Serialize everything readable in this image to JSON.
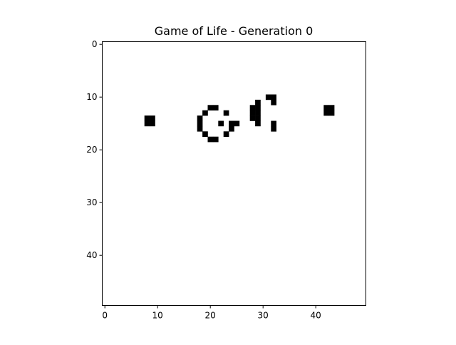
{
  "title": "Game of Life - Generation 0",
  "chart_data": {
    "type": "heatmap",
    "title": "Game of Life - Generation 0",
    "grid_size": [
      50,
      50
    ],
    "xlim": [
      -0.5,
      49.5
    ],
    "ylim": [
      49.5,
      -0.5
    ],
    "xticks": [
      0,
      10,
      20,
      30,
      40
    ],
    "yticks": [
      0,
      10,
      20,
      30,
      40
    ],
    "colors": {
      "alive": "#000000",
      "dead": "#ffffff"
    },
    "live_cells": [
      [
        31,
        10
      ],
      [
        32,
        10
      ],
      [
        29,
        11
      ],
      [
        32,
        11
      ],
      [
        20,
        12
      ],
      [
        21,
        12
      ],
      [
        28,
        12
      ],
      [
        29,
        12
      ],
      [
        42,
        12
      ],
      [
        43,
        12
      ],
      [
        19,
        13
      ],
      [
        23,
        13
      ],
      [
        28,
        13
      ],
      [
        29,
        13
      ],
      [
        42,
        13
      ],
      [
        43,
        13
      ],
      [
        8,
        14
      ],
      [
        9,
        14
      ],
      [
        18,
        14
      ],
      [
        28,
        14
      ],
      [
        29,
        14
      ],
      [
        8,
        15
      ],
      [
        9,
        15
      ],
      [
        18,
        15
      ],
      [
        22,
        15
      ],
      [
        24,
        15
      ],
      [
        25,
        15
      ],
      [
        29,
        15
      ],
      [
        32,
        15
      ],
      [
        18,
        16
      ],
      [
        24,
        16
      ],
      [
        32,
        16
      ],
      [
        19,
        17
      ],
      [
        23,
        17
      ],
      [
        20,
        18
      ],
      [
        21,
        18
      ]
    ]
  }
}
